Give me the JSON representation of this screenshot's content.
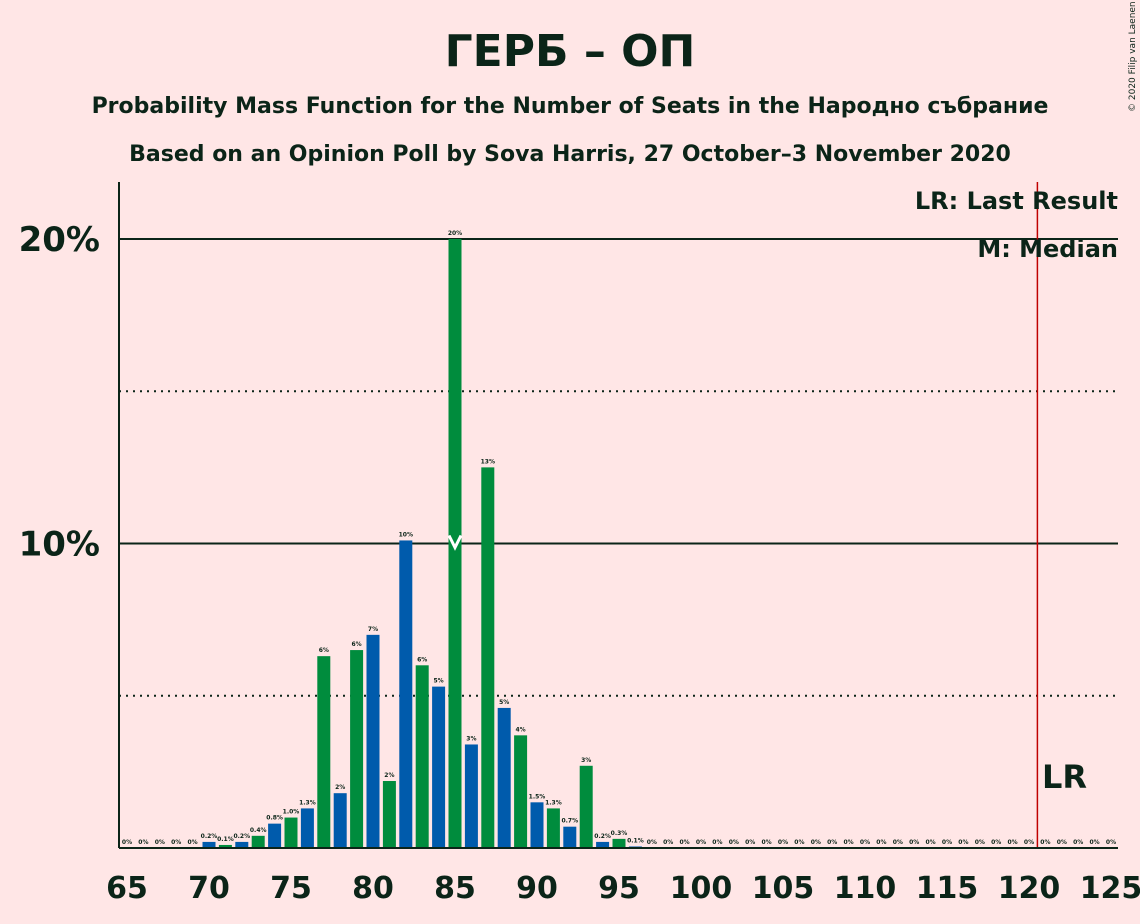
{
  "chart_data": {
    "type": "bar",
    "title": "ГЕРБ – ОП",
    "subtitle1": "Probability Mass Function for the Number of Seats in the Народно събрание",
    "subtitle2": "Based on an Opinion Poll by Sova Harris, 27 October–3 November 2020",
    "copyright": "© 2020 Filip van Laenen",
    "legend": {
      "lr": "LR: Last Result",
      "m": "M: Median",
      "position": "top-right"
    },
    "lr_label": "LR",
    "last_result": 121,
    "median": 85,
    "xlim": [
      65,
      125
    ],
    "ylim": [
      0,
      22
    ],
    "x_ticks": [
      65,
      70,
      75,
      80,
      85,
      90,
      95,
      100,
      105,
      110,
      115,
      120,
      125
    ],
    "x_tick_labels": [
      "65",
      "70",
      "75",
      "80",
      "85",
      "90",
      "95",
      "100",
      "105",
      "110",
      "115",
      "120",
      "125"
    ],
    "y_ticks_major": [
      10,
      20
    ],
    "y_tick_labels": [
      "10%",
      "20%"
    ],
    "y_ticks_minor": [
      5,
      15
    ],
    "colors": {
      "odd": "#008C3D",
      "even": "#005BAC",
      "last_result": "#C00000",
      "text": "#0B2418",
      "background": "#FFE6E6"
    },
    "x": [
      65,
      66,
      67,
      68,
      69,
      70,
      71,
      72,
      73,
      74,
      75,
      76,
      77,
      78,
      79,
      80,
      81,
      82,
      83,
      84,
      85,
      86,
      87,
      88,
      89,
      90,
      91,
      92,
      93,
      94,
      95,
      96,
      97,
      98,
      99,
      100,
      101,
      102,
      103,
      104,
      105,
      106,
      107,
      108,
      109,
      110,
      111,
      112,
      113,
      114,
      115,
      116,
      117,
      118,
      119,
      120,
      121,
      122,
      123,
      124,
      125
    ],
    "values": [
      0,
      0,
      0,
      0,
      0,
      0.2,
      0.1,
      0.2,
      0.4,
      0.8,
      1.0,
      1.3,
      6.3,
      1.8,
      6.5,
      7.0,
      2.2,
      10.1,
      6.0,
      5.3,
      20.0,
      3.4,
      12.5,
      4.6,
      3.7,
      1.5,
      1.3,
      0.7,
      2.7,
      0.2,
      0.3,
      0.05,
      0,
      0,
      0,
      0,
      0,
      0,
      0,
      0,
      0,
      0,
      0,
      0,
      0,
      0,
      0,
      0,
      0,
      0,
      0,
      0,
      0,
      0,
      0,
      0,
      0,
      0,
      0,
      0,
      0
    ],
    "labels": [
      "0%",
      "0%",
      "0%",
      "0%",
      "0%",
      "0.2%",
      "0.1%",
      "0.2%",
      "0.4%",
      "0.8%",
      "1.0%",
      "1.3%",
      "6%",
      "2%",
      "6%",
      "7%",
      "2%",
      "10%",
      "6%",
      "5%",
      "20%",
      "3%",
      "13%",
      "5%",
      "4%",
      "1.5%",
      "1.3%",
      "0.7%",
      "3%",
      "0.2%",
      "0.3%",
      "0.1%",
      "0%",
      "0%",
      "0%",
      "0%",
      "0%",
      "0%",
      "0%",
      "0%",
      "0%",
      "0%",
      "0%",
      "0%",
      "0%",
      "0%",
      "0%",
      "0%",
      "0%",
      "0%",
      "0%",
      "0%",
      "0%",
      "0%",
      "0%",
      "0%",
      "0%",
      "0%",
      "0%",
      "0%",
      "0%"
    ]
  }
}
